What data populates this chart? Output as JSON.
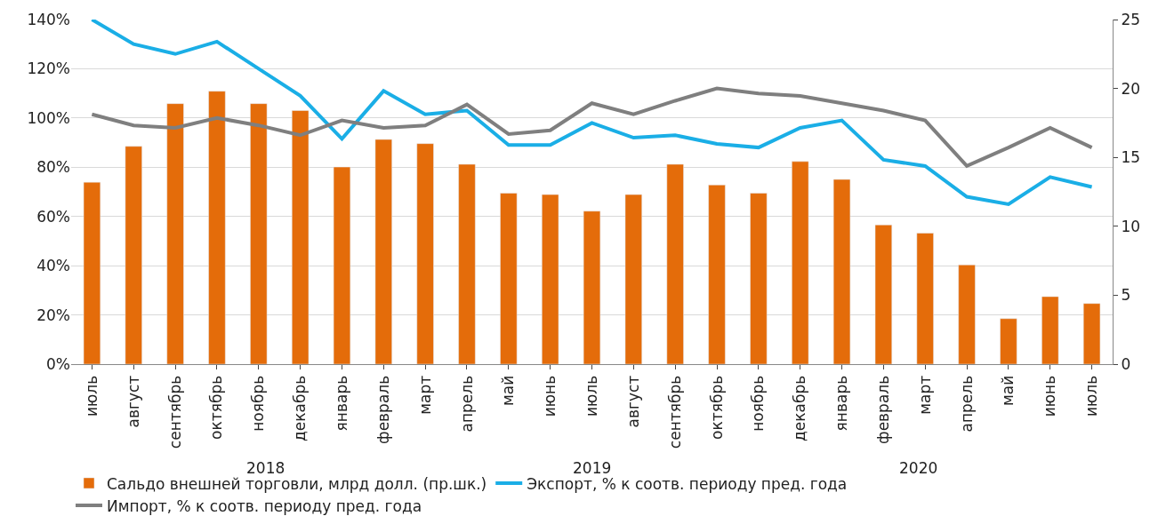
{
  "chart_data": {
    "type": "line",
    "categories": [
      "июль",
      "август",
      "сентябрь",
      "октябрь",
      "ноябрь",
      "декабрь",
      "январь",
      "февраль",
      "март",
      "апрель",
      "май",
      "июнь",
      "июль",
      "август",
      "сентябрь",
      "октябрь",
      "ноябрь",
      "декабрь",
      "январь",
      "февраль",
      "март",
      "апрель",
      "май",
      "июнь",
      "июль"
    ],
    "series": [
      {
        "name": "Сальдо внешней торговли, млрд долл. (пр.шк.)",
        "type": "bar",
        "axis": "y2",
        "color": "#e46c0a",
        "values": [
          13.2,
          15.8,
          18.9,
          19.8,
          18.9,
          18.4,
          14.3,
          16.3,
          16.0,
          14.5,
          12.4,
          12.3,
          11.1,
          12.3,
          14.5,
          13.0,
          12.4,
          14.7,
          13.4,
          10.1,
          9.5,
          7.2,
          3.3,
          4.9,
          4.4
        ]
      },
      {
        "name": "Экспорт, % к соотв. периоду пред. года",
        "color": "#1aaee6",
        "values": [
          140,
          130,
          126,
          131,
          120,
          109,
          91.5,
          111,
          101.5,
          103,
          89,
          89,
          98,
          92,
          93,
          89.5,
          88,
          96,
          99,
          83,
          80.5,
          68,
          65,
          76,
          72
        ]
      },
      {
        "name": "Импорт, % к соотв. периоду пред. года",
        "color": "#7f7f7f",
        "values": [
          101.5,
          97,
          96,
          100,
          97,
          93,
          99,
          96,
          97,
          105.5,
          93.5,
          95,
          106,
          101.5,
          107,
          112,
          110,
          109,
          106,
          103,
          99,
          80.5,
          88,
          96,
          88
        ]
      }
    ],
    "annotations": [
      "2018",
      "2019",
      "2020"
    ],
    "ylim": [
      0,
      140
    ],
    "yticks": [
      {
        "value": 0,
        "label": "0%"
      },
      {
        "value": 20,
        "label": "20%"
      },
      {
        "value": 40,
        "label": "40%"
      },
      {
        "value": 60,
        "label": "60%"
      },
      {
        "value": 80,
        "label": "80%"
      },
      {
        "value": 100,
        "label": "100%"
      },
      {
        "value": 120,
        "label": "120%"
      },
      {
        "value": 140,
        "label": "140%"
      }
    ],
    "y2lim": [
      0,
      25
    ],
    "y2ticks": [
      0,
      5,
      10,
      15,
      20,
      25
    ],
    "grid": "y",
    "legend": "bottom",
    "line_style": "solid",
    "marker": "none"
  }
}
